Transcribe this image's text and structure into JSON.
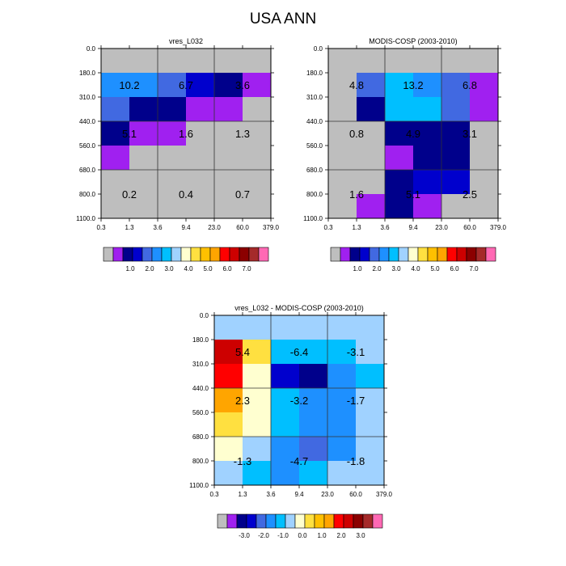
{
  "figure": {
    "title": "USA ANN"
  },
  "chart_data": [
    {
      "type": "heatmap",
      "title": "vres_L032",
      "x_ticks": [
        "0.3",
        "1.3",
        "3.6",
        "9.4",
        "23.0",
        "60.0",
        "379.0"
      ],
      "y_ticks": [
        "0.0",
        "180.0",
        "310.0",
        "440.0",
        "560.0",
        "680.0",
        "800.0",
        "1100.0"
      ],
      "x_bins": 6,
      "y_bins": 7,
      "cells": [
        [
          -1,
          -1,
          -1,
          -1,
          -1,
          -1
        ],
        [
          5,
          5,
          4,
          3,
          2,
          1
        ],
        [
          4,
          2,
          2,
          1,
          1,
          -1
        ],
        [
          2,
          1,
          1,
          -1,
          -1,
          -1
        ],
        [
          1,
          -1,
          -1,
          -1,
          -1,
          -1
        ],
        [
          -1,
          -1,
          -1,
          -1,
          -1,
          -1
        ],
        [
          -1,
          -1,
          -1,
          -1,
          -1,
          -1
        ]
      ],
      "annotations": [
        {
          "text": "10.2",
          "xbin": 1,
          "ybin": 1.5
        },
        {
          "text": "6.7",
          "xbin": 3,
          "ybin": 1.5
        },
        {
          "text": "3.6",
          "xbin": 5,
          "ybin": 1.5
        },
        {
          "text": "5.1",
          "xbin": 1,
          "ybin": 3.5
        },
        {
          "text": "1.6",
          "xbin": 3,
          "ybin": 3.5
        },
        {
          "text": "1.3",
          "xbin": 5,
          "ybin": 3.5
        },
        {
          "text": "0.2",
          "xbin": 1,
          "ybin": 6
        },
        {
          "text": "0.4",
          "xbin": 3,
          "ybin": 6
        },
        {
          "text": "0.7",
          "xbin": 5,
          "ybin": 6
        }
      ],
      "colorbar": {
        "colors": [
          "#bebebe",
          "#a020f0",
          "#00008b",
          "#0000cd",
          "#4169e1",
          "#1e90ff",
          "#00bfff",
          "#a0d2ff",
          "#ffffd0",
          "#ffe040",
          "#ffc000",
          "#ffa500",
          "#ff0000",
          "#cd0000",
          "#8b0000",
          "#a52a2a",
          "#ff69b4"
        ],
        "labels": [
          "1.0",
          "2.0",
          "3.0",
          "4.0",
          "5.0",
          "6.0",
          "7.0"
        ]
      }
    },
    {
      "type": "heatmap",
      "title": "MODIS-COSP (2003-2010)",
      "x_ticks": [
        "0.3",
        "1.3",
        "3.6",
        "9.4",
        "23.0",
        "60.0",
        "379.0"
      ],
      "y_ticks": [
        "0.0",
        "180.0",
        "310.0",
        "440.0",
        "560.0",
        "680.0",
        "800.0",
        "1100.0"
      ],
      "x_bins": 6,
      "y_bins": 7,
      "cells": [
        [
          -1,
          -1,
          -1,
          -1,
          -1,
          -1
        ],
        [
          -1,
          4,
          6,
          5,
          4,
          1
        ],
        [
          -1,
          2,
          6,
          6,
          4,
          1
        ],
        [
          -1,
          -1,
          2,
          2,
          2,
          -1
        ],
        [
          -1,
          -1,
          1,
          2,
          2,
          -1
        ],
        [
          -1,
          -1,
          2,
          3,
          3,
          -1
        ],
        [
          -1,
          1,
          2,
          1,
          -1,
          -1
        ]
      ],
      "annotations": [
        {
          "text": "4.8",
          "xbin": 1,
          "ybin": 1.5
        },
        {
          "text": "13.2",
          "xbin": 3,
          "ybin": 1.5
        },
        {
          "text": "6.8",
          "xbin": 5,
          "ybin": 1.5
        },
        {
          "text": "0.8",
          "xbin": 1,
          "ybin": 3.5
        },
        {
          "text": "4.9",
          "xbin": 3,
          "ybin": 3.5
        },
        {
          "text": "3.1",
          "xbin": 5,
          "ybin": 3.5
        },
        {
          "text": "1.6",
          "xbin": 1,
          "ybin": 6
        },
        {
          "text": "5.1",
          "xbin": 3,
          "ybin": 6
        },
        {
          "text": "2.5",
          "xbin": 5,
          "ybin": 6
        }
      ],
      "colorbar": {
        "colors": [
          "#bebebe",
          "#a020f0",
          "#00008b",
          "#0000cd",
          "#4169e1",
          "#1e90ff",
          "#00bfff",
          "#a0d2ff",
          "#ffffd0",
          "#ffe040",
          "#ffc000",
          "#ffa500",
          "#ff0000",
          "#cd0000",
          "#8b0000",
          "#a52a2a",
          "#ff69b4"
        ],
        "labels": [
          "1.0",
          "2.0",
          "3.0",
          "4.0",
          "5.0",
          "6.0",
          "7.0"
        ]
      }
    },
    {
      "type": "heatmap",
      "title": "vres_L032 - MODIS-COSP (2003-2010)",
      "x_ticks": [
        "0.3",
        "1.3",
        "3.6",
        "9.4",
        "23.0",
        "60.0",
        "379.0"
      ],
      "y_ticks": [
        "0.0",
        "180.0",
        "310.0",
        "440.0",
        "560.0",
        "680.0",
        "800.0",
        "1100.0"
      ],
      "x_bins": 6,
      "y_bins": 7,
      "cells": [
        [
          7,
          7,
          7,
          7,
          7,
          7
        ],
        [
          13,
          9,
          6,
          6,
          6,
          7
        ],
        [
          12,
          8,
          3,
          2,
          5,
          6
        ],
        [
          11,
          8,
          6,
          5,
          5,
          7
        ],
        [
          9,
          8,
          6,
          5,
          5,
          7
        ],
        [
          8,
          7,
          5,
          4,
          5,
          7
        ],
        [
          7,
          6,
          5,
          6,
          7,
          7
        ]
      ],
      "annotations": [
        {
          "text": "5.4",
          "xbin": 1,
          "ybin": 1.5
        },
        {
          "text": "-6.4",
          "xbin": 3,
          "ybin": 1.5
        },
        {
          "text": "-3.1",
          "xbin": 5,
          "ybin": 1.5
        },
        {
          "text": "2.3",
          "xbin": 1,
          "ybin": 3.5
        },
        {
          "text": "-3.2",
          "xbin": 3,
          "ybin": 3.5
        },
        {
          "text": "-1.7",
          "xbin": 5,
          "ybin": 3.5
        },
        {
          "text": "-1.3",
          "xbin": 1,
          "ybin": 6
        },
        {
          "text": "-4.7",
          "xbin": 3,
          "ybin": 6
        },
        {
          "text": "-1.8",
          "xbin": 5,
          "ybin": 6
        }
      ],
      "colorbar": {
        "colors": [
          "#bebebe",
          "#a020f0",
          "#00008b",
          "#0000cd",
          "#4169e1",
          "#1e90ff",
          "#00bfff",
          "#a0d2ff",
          "#ffffd0",
          "#ffe040",
          "#ffc000",
          "#ffa500",
          "#ff0000",
          "#cd0000",
          "#8b0000",
          "#a52a2a",
          "#ff69b4"
        ],
        "labels": [
          "-3.0",
          "-2.0",
          "-1.0",
          "0.0",
          "1.0",
          "2.0",
          "3.0"
        ]
      }
    }
  ],
  "palettes": {
    "cell_colors": [
      "#bebebe",
      "#a020f0",
      "#00008b",
      "#0000cd",
      "#4169e1",
      "#1e90ff",
      "#00bfff",
      "#a0d2ff",
      "#ffffd0",
      "#ffe040",
      "#ffc000",
      "#ffa500",
      "#ff0000",
      "#cd0000",
      "#8b0000",
      "#a52a2a",
      "#ff69b4"
    ],
    "diff_cell_colors": [
      "#a0d2ff",
      "#a020f0",
      "#00008b",
      "#0000cd",
      "#4169e1",
      "#1e90ff",
      "#00bfff",
      "#a0d2ff",
      "#ffffd0",
      "#ffe040",
      "#ffc000",
      "#ffa500",
      "#ff0000",
      "#cd0000",
      "#8b0000",
      "#a52a2a",
      "#ff69b4"
    ]
  }
}
